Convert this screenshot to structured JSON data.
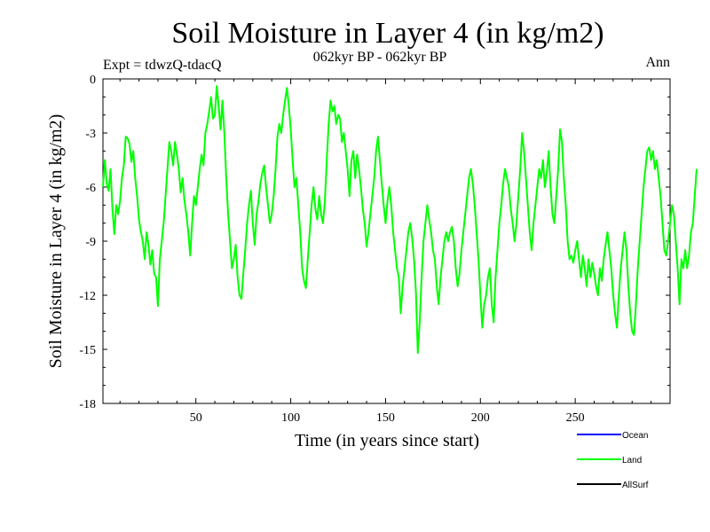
{
  "chart_data": {
    "type": "line",
    "title": "Soil Moisture in Layer 4 (in kg/m2)",
    "subtitle": "062kyr BP - 062kyr BP",
    "expt_label": "Expt = tdwzQ-tdacQ",
    "period_label": "Ann",
    "xlabel": "Time (in years since start)",
    "ylabel": "Soil Moisture in Layer 4 (in kg/m2)",
    "xlim": [
      1,
      300
    ],
    "ylim": [
      -18,
      0
    ],
    "x_ticks": [
      50,
      100,
      150,
      200,
      250
    ],
    "x_tick_labels": [
      "50",
      "100",
      "150",
      "200",
      "250"
    ],
    "y_ticks": [
      0,
      -3,
      -6,
      -9,
      -12,
      -15,
      -18
    ],
    "y_tick_labels": [
      "0",
      "-3",
      "-6",
      "-9",
      "-12",
      "-15",
      "-18"
    ],
    "legend": [
      {
        "name": "Ocean",
        "color": "#0000ff"
      },
      {
        "name": "Land",
        "color": "#00ff00"
      },
      {
        "name": "AllSurf",
        "color": "#000000"
      }
    ],
    "series": [
      {
        "name": "Land",
        "color": "#00ff00",
        "x_start": 1,
        "x_step": 1,
        "values": [
          -6.0,
          -4.5,
          -5.8,
          -6.2,
          -5.0,
          -7.2,
          -8.6,
          -7.0,
          -7.5,
          -6.8,
          -5.5,
          -4.8,
          -3.2,
          -3.3,
          -3.6,
          -4.6,
          -4.0,
          -5.5,
          -6.5,
          -7.8,
          -8.5,
          -9.0,
          -10.0,
          -8.5,
          -9.2,
          -10.3,
          -9.5,
          -10.8,
          -11.0,
          -12.6,
          -10.0,
          -9.0,
          -8.0,
          -6.5,
          -5.0,
          -3.5,
          -4.0,
          -4.8,
          -3.5,
          -4.2,
          -5.0,
          -6.3,
          -5.5,
          -6.8,
          -7.5,
          -8.5,
          -9.8,
          -8.0,
          -6.5,
          -7.0,
          -6.0,
          -5.0,
          -4.2,
          -4.8,
          -3.0,
          -2.5,
          -1.8,
          -1.0,
          -2.2,
          -2.0,
          -0.4,
          -1.5,
          -2.8,
          -1.2,
          -3.0,
          -5.5,
          -7.5,
          -9.0,
          -10.5,
          -10.0,
          -9.2,
          -11.0,
          -12.0,
          -12.2,
          -10.8,
          -9.5,
          -8.0,
          -7.0,
          -6.2,
          -8.0,
          -9.2,
          -7.5,
          -6.8,
          -5.8,
          -5.2,
          -4.8,
          -6.0,
          -7.0,
          -8.0,
          -7.5,
          -6.5,
          -5.0,
          -3.2,
          -2.5,
          -3.0,
          -2.0,
          -1.2,
          -0.5,
          -1.5,
          -2.8,
          -4.5,
          -6.0,
          -5.5,
          -7.0,
          -8.5,
          -10.5,
          -11.2,
          -11.6,
          -10.0,
          -8.5,
          -7.0,
          -6.0,
          -7.2,
          -7.8,
          -6.5,
          -7.5,
          -8.0,
          -6.8,
          -4.5,
          -2.5,
          -1.2,
          -1.8,
          -1.5,
          -2.5,
          -2.0,
          -2.2,
          -3.5,
          -3.0,
          -4.0,
          -5.0,
          -6.5,
          -4.5,
          -4.0,
          -5.5,
          -4.2,
          -5.0,
          -6.0,
          -7.2,
          -8.0,
          -9.3,
          -8.5,
          -7.5,
          -6.5,
          -5.5,
          -4.0,
          -3.2,
          -4.5,
          -5.8,
          -7.0,
          -8.0,
          -6.8,
          -6.0,
          -7.0,
          -8.5,
          -9.5,
          -10.5,
          -11.0,
          -13.0,
          -11.5,
          -10.5,
          -9.5,
          -8.5,
          -8.0,
          -8.8,
          -10.0,
          -11.8,
          -15.2,
          -13.5,
          -11.0,
          -9.0,
          -8.0,
          -7.0,
          -7.8,
          -8.5,
          -9.5,
          -10.0,
          -11.5,
          -12.5,
          -11.0,
          -10.0,
          -9.0,
          -8.5,
          -9.0,
          -8.5,
          -8.2,
          -9.0,
          -10.5,
          -11.5,
          -10.8,
          -9.5,
          -8.5,
          -7.5,
          -6.5,
          -5.5,
          -5.0,
          -5.8,
          -7.0,
          -8.5,
          -10.0,
          -12.0,
          -13.8,
          -12.5,
          -12.0,
          -11.0,
          -10.5,
          -12.5,
          -13.5,
          -11.0,
          -9.5,
          -8.0,
          -7.0,
          -5.8,
          -5.0,
          -5.5,
          -6.0,
          -7.2,
          -8.0,
          -9.0,
          -8.0,
          -6.5,
          -5.0,
          -3.0,
          -4.0,
          -5.5,
          -7.0,
          -8.5,
          -9.5,
          -8.0,
          -7.0,
          -6.0,
          -5.0,
          -5.5,
          -4.5,
          -6.0,
          -5.2,
          -4.0,
          -6.0,
          -7.5,
          -8.0,
          -6.5,
          -5.0,
          -2.8,
          -3.5,
          -5.5,
          -7.0,
          -9.0,
          -10.0,
          -9.8,
          -10.2,
          -9.5,
          -9.0,
          -10.0,
          -11.0,
          -9.8,
          -10.5,
          -11.5,
          -10.0,
          -11.0,
          -10.2,
          -10.8,
          -11.5,
          -12.0,
          -10.5,
          -11.2,
          -10.0,
          -9.2,
          -8.5,
          -9.5,
          -10.5,
          -12.0,
          -13.0,
          -13.8,
          -12.0,
          -10.5,
          -9.5,
          -8.5,
          -9.5,
          -11.5,
          -13.0,
          -14.0,
          -14.2,
          -12.5,
          -10.5,
          -9.0,
          -7.5,
          -6.0,
          -5.0,
          -4.0,
          -3.8,
          -4.5,
          -4.0,
          -5.0,
          -4.5,
          -5.5,
          -6.5,
          -8.0,
          -9.5,
          -9.8,
          -9.0,
          -8.0,
          -7.0,
          -7.5,
          -9.0,
          -10.5,
          -12.5,
          -10.0,
          -10.5,
          -9.5,
          -10.5,
          -9.8,
          -8.5,
          -8.0,
          -6.5,
          -5.0
        ]
      }
    ]
  }
}
